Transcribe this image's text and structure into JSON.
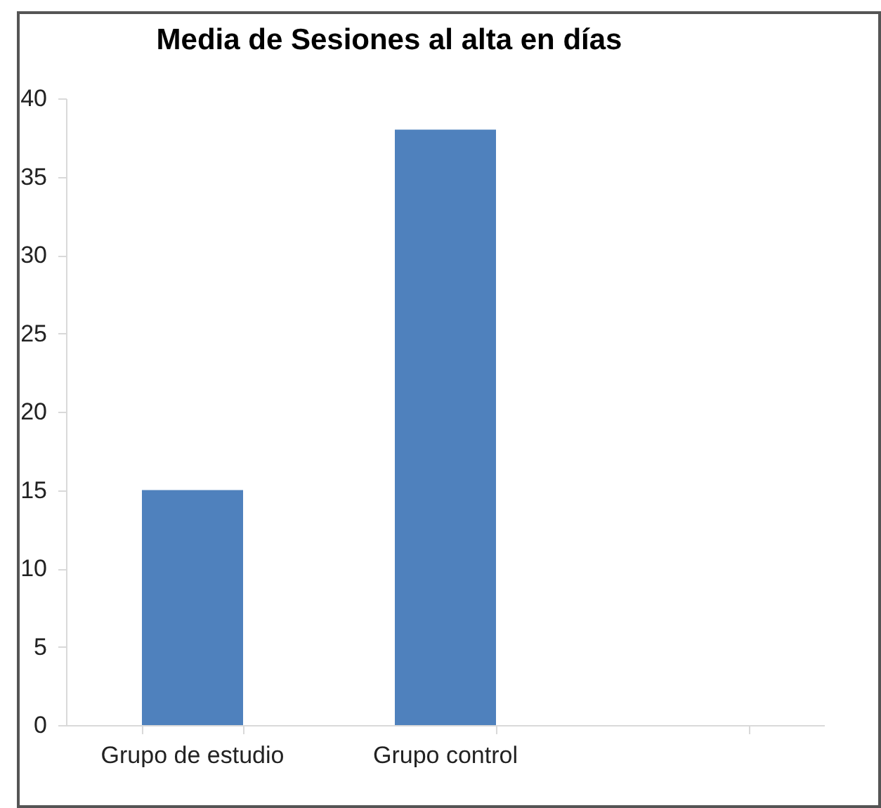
{
  "chart_data": {
    "type": "bar",
    "title": "Media de Sesiones al alta en días",
    "categories": [
      "Grupo de estudio",
      "Grupo control",
      null
    ],
    "values": [
      15,
      38,
      null
    ],
    "color": "#4f81bd",
    "ylim": [
      0,
      40
    ],
    "yticks": [
      0,
      5,
      10,
      15,
      20,
      25,
      30,
      35,
      40
    ],
    "grid": false
  }
}
